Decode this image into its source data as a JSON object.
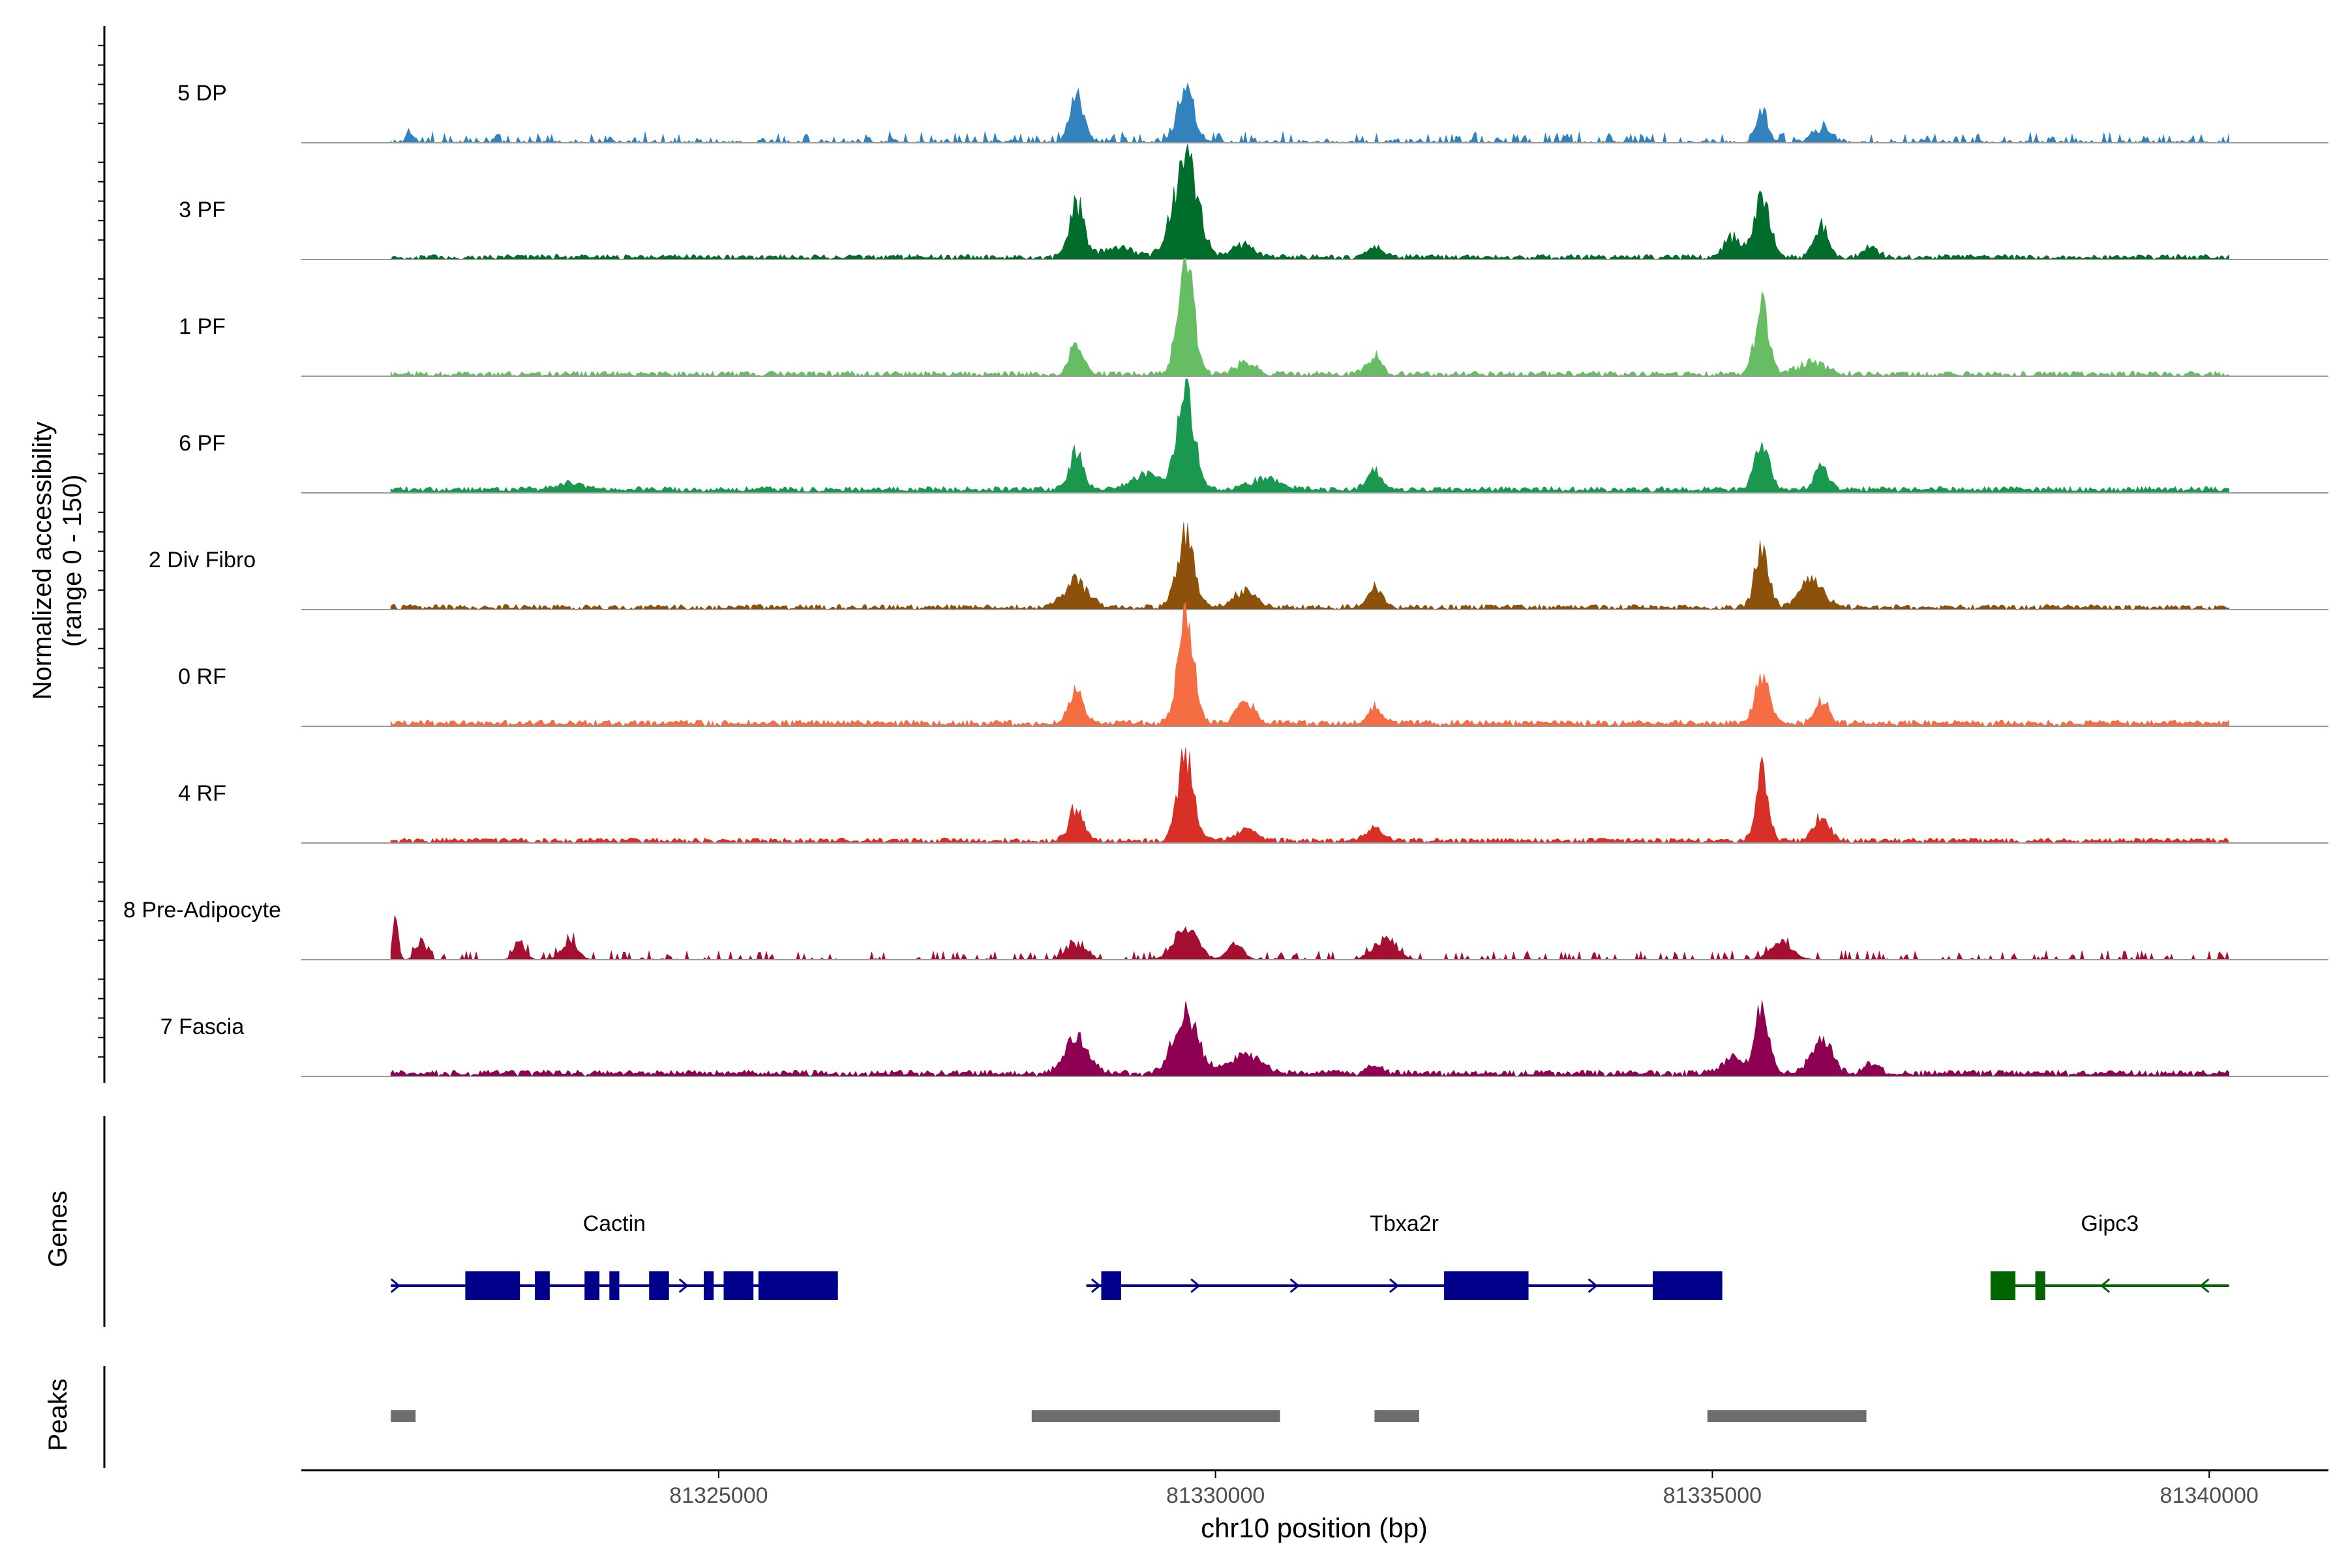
{
  "chart_data": {
    "type": "area",
    "chromosome": "chr10",
    "xlabel": "chr10 position (bp)",
    "ylabel_line1": "Normalized accessibility",
    "ylabel_line2": "(range 0 - 150)",
    "ylim": [
      0,
      150
    ],
    "xlim": [
      81320800,
      81341200
    ],
    "x_ticks": [
      81325000,
      81330000,
      81335000,
      81340000
    ],
    "x_tick_labels": [
      "81325000",
      "81330000",
      "81335000",
      "81340000"
    ],
    "track_range": [
      81321700,
      81340200
    ],
    "series": [
      {
        "name": "5 DP",
        "color": "#3182BD",
        "peaks": [
          [
            81321900,
            10,
            40
          ],
          [
            81328600,
            60,
            70
          ],
          [
            81329700,
            75,
            80
          ],
          [
            81335500,
            35,
            60
          ],
          [
            81336100,
            15,
            100
          ]
        ],
        "baseline": 2,
        "density": 0.45
      },
      {
        "name": "3 PF",
        "color": "#006D2C",
        "peaks": [
          [
            81328600,
            70,
            70
          ],
          [
            81329700,
            130,
            120
          ],
          [
            81329000,
            12,
            200
          ],
          [
            81330300,
            20,
            100
          ],
          [
            81331600,
            14,
            80
          ],
          [
            81335200,
            25,
            90
          ],
          [
            81335500,
            75,
            80
          ],
          [
            81336100,
            40,
            70
          ],
          [
            81336600,
            12,
            80
          ]
        ],
        "baseline": 4,
        "density": 0.9
      },
      {
        "name": "1 PF",
        "color": "#66BD63",
        "peaks": [
          [
            81328600,
            40,
            70
          ],
          [
            81329700,
            145,
            80
          ],
          [
            81330300,
            15,
            100
          ],
          [
            81331600,
            25,
            70
          ],
          [
            81335500,
            90,
            70
          ],
          [
            81336000,
            15,
            150
          ]
        ],
        "baseline": 4,
        "density": 0.8
      },
      {
        "name": "6 PF",
        "color": "#1A9850",
        "peaks": [
          [
            81328600,
            50,
            70
          ],
          [
            81329700,
            120,
            90
          ],
          [
            81329300,
            20,
            150
          ],
          [
            81330500,
            15,
            150
          ],
          [
            81331600,
            25,
            70
          ],
          [
            81335500,
            65,
            70
          ],
          [
            81336100,
            30,
            70
          ],
          [
            81323500,
            8,
            120
          ]
        ],
        "baseline": 5,
        "density": 1.0
      },
      {
        "name": "2 Div Fibro",
        "color": "#8C510A",
        "peaks": [
          [
            81328600,
            35,
            120
          ],
          [
            81329700,
            90,
            90
          ],
          [
            81330300,
            20,
            120
          ],
          [
            81331600,
            25,
            70
          ],
          [
            81335500,
            75,
            70
          ],
          [
            81336000,
            35,
            120
          ]
        ],
        "baseline": 4,
        "density": 0.85
      },
      {
        "name": "0 RF",
        "color": "#F46D43",
        "peaks": [
          [
            81328600,
            45,
            70
          ],
          [
            81329700,
            145,
            80
          ],
          [
            81330300,
            25,
            100
          ],
          [
            81331600,
            20,
            70
          ],
          [
            81335500,
            60,
            70
          ],
          [
            81336100,
            30,
            70
          ]
        ],
        "baseline": 5,
        "density": 0.95
      },
      {
        "name": "4 RF",
        "color": "#D73027",
        "peaks": [
          [
            81328600,
            45,
            70
          ],
          [
            81329700,
            110,
            80
          ],
          [
            81330300,
            15,
            100
          ],
          [
            81331600,
            15,
            80
          ],
          [
            81335500,
            90,
            60
          ],
          [
            81336100,
            30,
            80
          ]
        ],
        "baseline": 4,
        "density": 0.9
      },
      {
        "name": "8 Pre-Adipocyte",
        "color": "#A50F30",
        "peaks": [
          [
            81321750,
            50,
            30
          ],
          [
            81322000,
            25,
            50
          ],
          [
            81323000,
            20,
            60
          ],
          [
            81323500,
            25,
            80
          ],
          [
            81328600,
            20,
            100
          ],
          [
            81329700,
            40,
            120
          ],
          [
            81330200,
            20,
            80
          ],
          [
            81331700,
            25,
            120
          ],
          [
            81335700,
            20,
            120
          ]
        ],
        "baseline": 0,
        "density": 0.35
      },
      {
        "name": "7 Fascia",
        "color": "#8E0152",
        "peaks": [
          [
            81328600,
            45,
            120
          ],
          [
            81329700,
            80,
            120
          ],
          [
            81330300,
            25,
            150
          ],
          [
            81331600,
            12,
            80
          ],
          [
            81335200,
            20,
            100
          ],
          [
            81335500,
            85,
            70
          ],
          [
            81336100,
            45,
            100
          ],
          [
            81336600,
            12,
            80
          ]
        ],
        "baseline": 5,
        "density": 0.95
      }
    ],
    "genes_label": "Genes",
    "genes": [
      {
        "name": "Cactin",
        "strand": "+",
        "color": "#00008B",
        "start": 81321700,
        "end": 81326200,
        "exons": [
          [
            81322450,
            81323000
          ],
          [
            81323150,
            81323300
          ],
          [
            81323650,
            81323800
          ],
          [
            81323900,
            81324000
          ],
          [
            81324300,
            81324500
          ],
          [
            81324850,
            81324950
          ],
          [
            81325050,
            81325350
          ],
          [
            81325400,
            81326200
          ]
        ],
        "arrows": [
          81321750,
          81324650
        ]
      },
      {
        "name": "Tbxa2r",
        "strand": "+",
        "color": "#00008B",
        "start": 81328700,
        "end": 81335100,
        "exons": [
          [
            81328850,
            81329050
          ],
          [
            81332300,
            81333150
          ],
          [
            81334400,
            81335100
          ]
        ],
        "arrows": [
          81328800,
          81329800,
          81330800,
          81331800,
          81333800
        ]
      },
      {
        "name": "Gipc3",
        "strand": "-",
        "color": "#006400",
        "start": 81337800,
        "end": 81340200,
        "exons": [
          [
            81337800,
            81338050
          ],
          [
            81338250,
            81338350
          ]
        ],
        "arrows": [
          81338950,
          81339950
        ]
      }
    ],
    "peaks_label": "Peaks",
    "peaks_color": "#6E6E6E",
    "peak_regions": [
      [
        81321700,
        81321950
      ],
      [
        81328150,
        81330650
      ],
      [
        81331600,
        81332050
      ],
      [
        81334950,
        81336550
      ]
    ]
  }
}
